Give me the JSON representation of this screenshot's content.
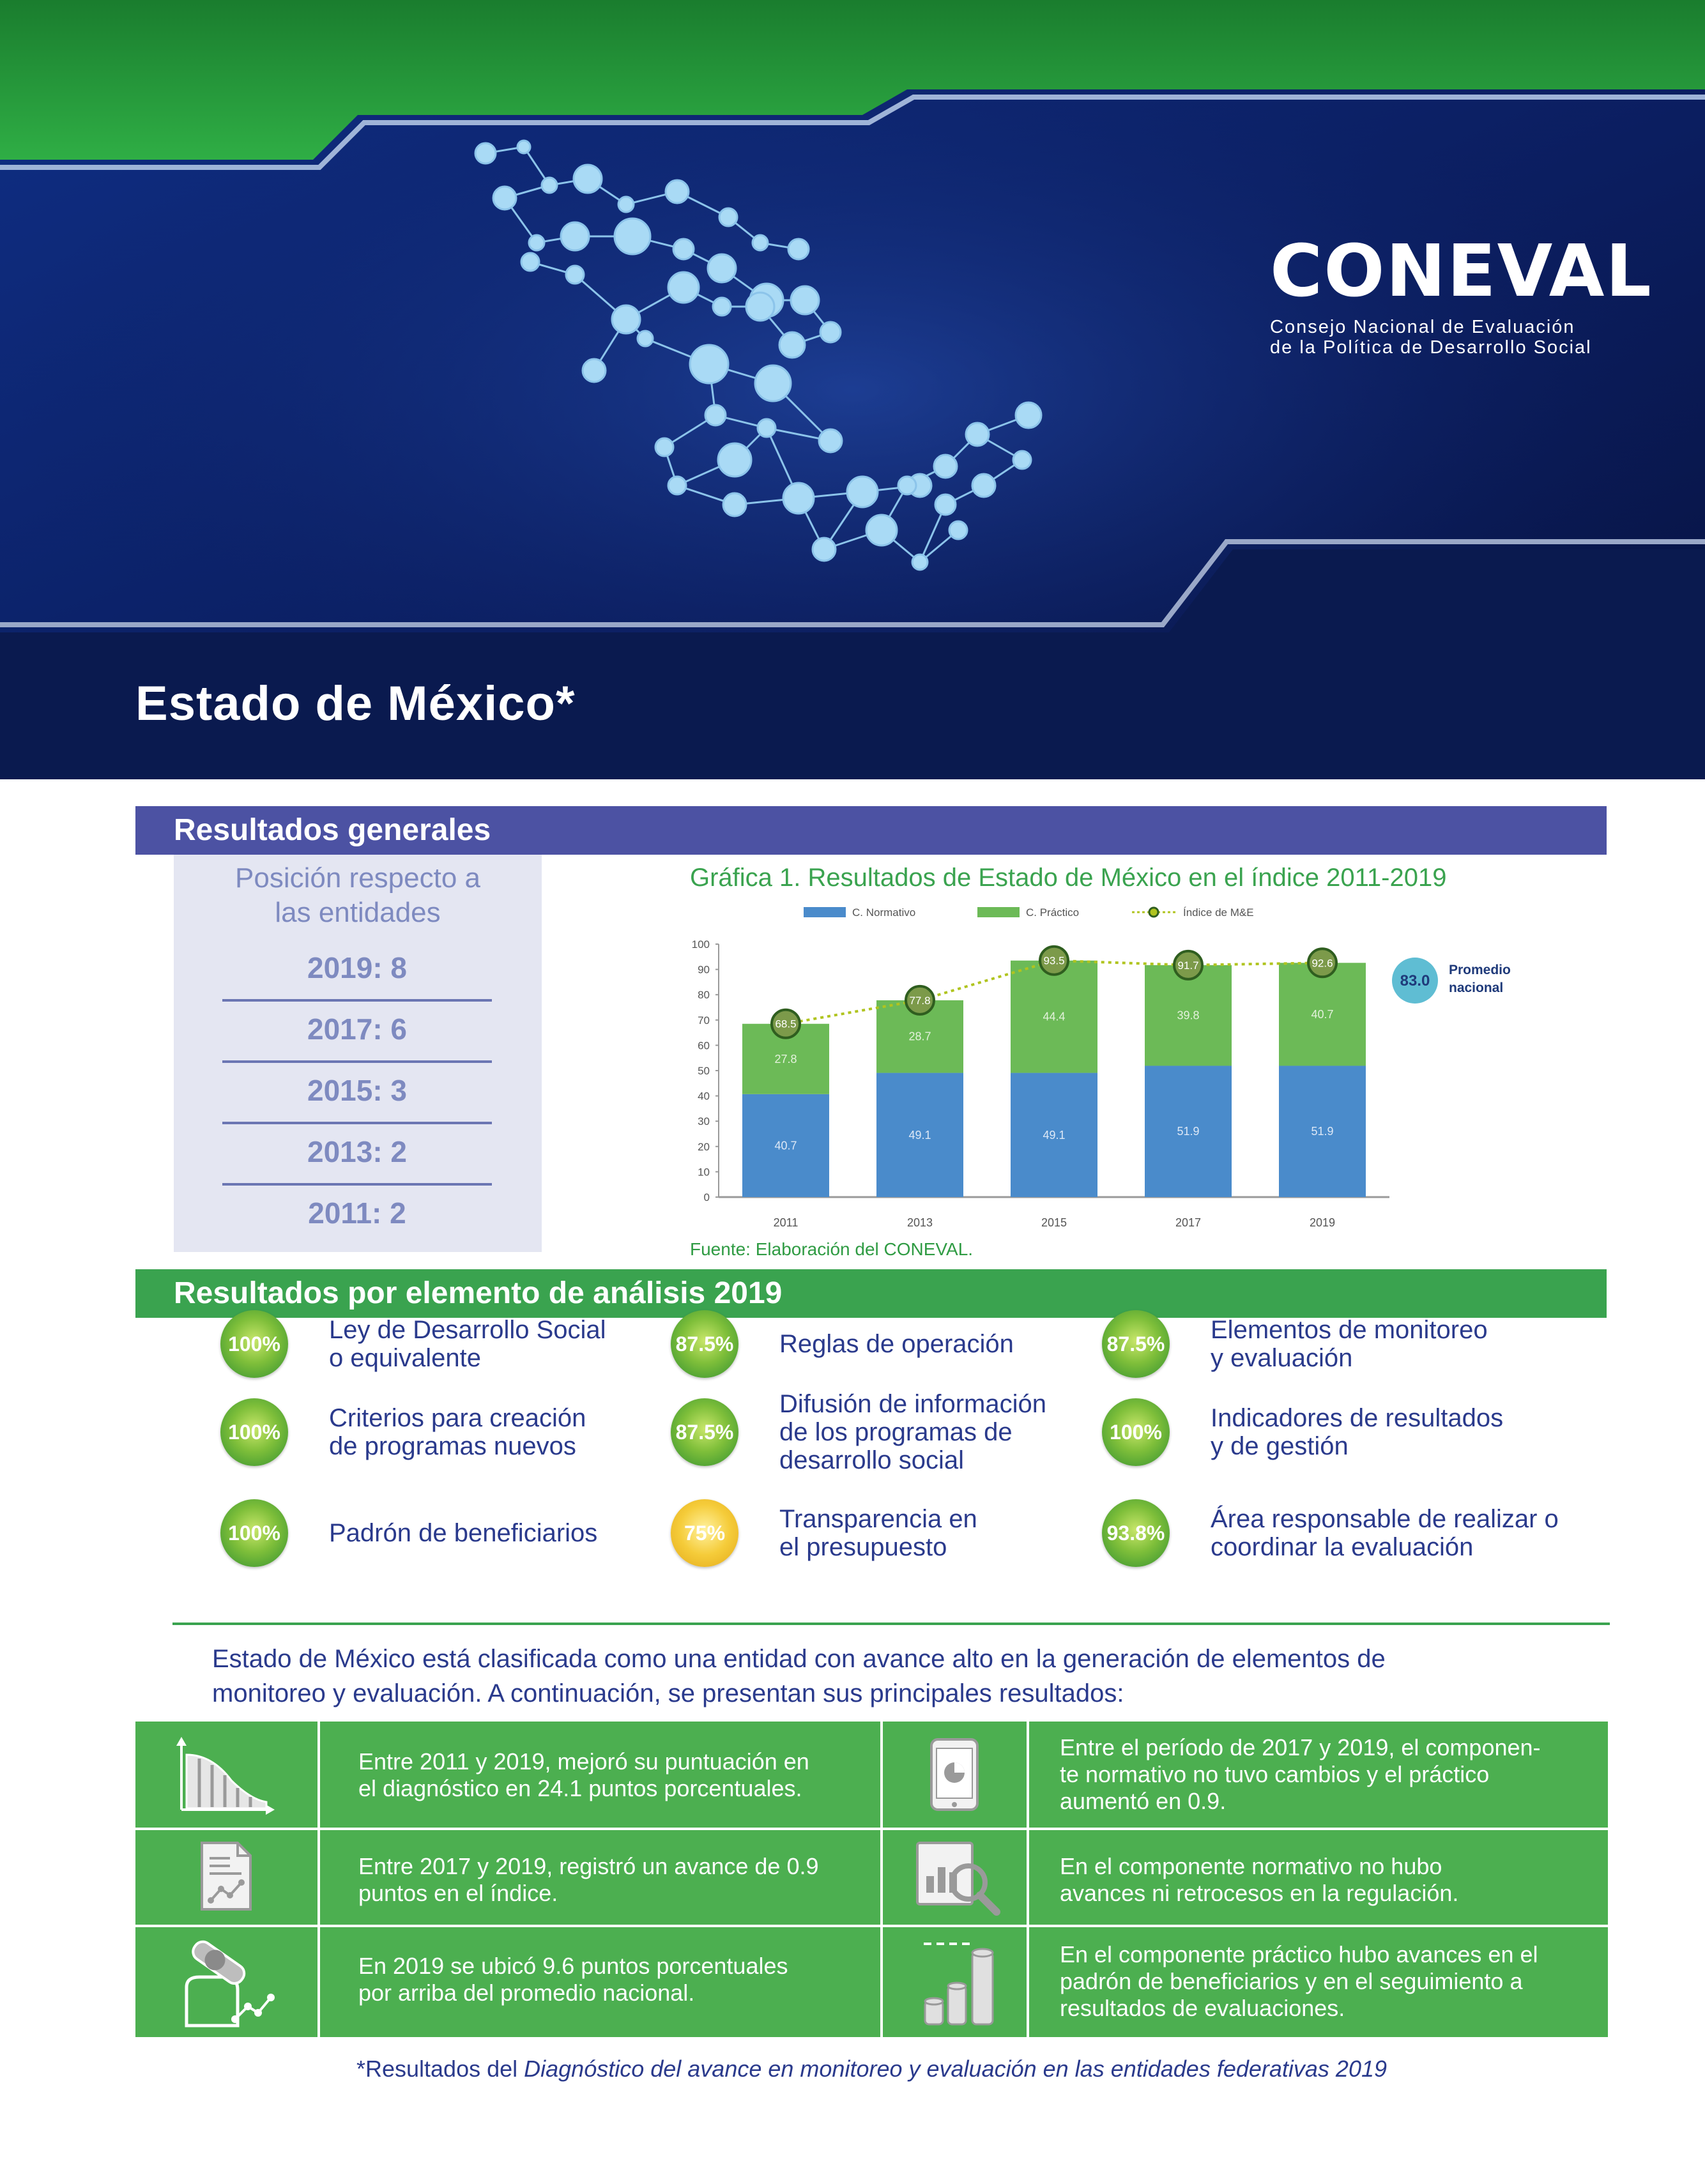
{
  "header": {
    "logo_word": "CONEVAL",
    "logo_sub_line1": "Consejo Nacional de Evaluación",
    "logo_sub_line2": "de la Política de Desarrollo Social",
    "page_title": "Estado de México*"
  },
  "colors": {
    "navy": "#0e1f5a",
    "green": "#3aa34f",
    "purple_bar": "#4c52a3",
    "normativo": "#4a8bcb",
    "practico": "#6cba57",
    "index_line": "#b0c41f"
  },
  "generales": {
    "section_title": "Resultados generales",
    "rank_title_line1": "Posición respecto a",
    "rank_title_line2": "las entidades",
    "ranks": [
      "2019:  8",
      "2017:  6",
      "2015:  3",
      "2013:  2",
      "2011:  2"
    ]
  },
  "chart": {
    "title": "Gráfica 1. Resultados de Estado de México en el índice 2011-2019",
    "source": "Fuente: Elaboración del CONEVAL.",
    "promedio_value": "83.0",
    "promedio_label_1": "Promedio",
    "promedio_label_2": "nacional"
  },
  "chart_data": {
    "type": "bar",
    "stacked": true,
    "categories": [
      "2011",
      "2013",
      "2015",
      "2017",
      "2019"
    ],
    "series": [
      {
        "name": "C. Normativo",
        "values": [
          40.7,
          49.1,
          49.1,
          51.9,
          51.9
        ]
      },
      {
        "name": "C. Práctico",
        "values": [
          27.8,
          28.7,
          44.4,
          39.8,
          40.7
        ]
      },
      {
        "name": "Índice de M&E",
        "type": "line",
        "values": [
          68.5,
          77.8,
          93.5,
          91.7,
          92.6
        ]
      }
    ],
    "ylim": [
      0,
      100
    ],
    "yticks": [
      "0",
      "10",
      "20",
      "30",
      "40",
      "50",
      "60",
      "70",
      "80",
      "90",
      "100"
    ],
    "legend": "top",
    "grid": false
  },
  "elementos": {
    "section_title": "Resultados por elemento de análisis 2019",
    "items": [
      {
        "pct": "100%",
        "label1": "Ley de Desarrollo Social",
        "label2": "o equivalente",
        "label3": ""
      },
      {
        "pct": "87.5%",
        "label1": "Reglas de operación",
        "label2": "",
        "label3": ""
      },
      {
        "pct": "87.5%",
        "label1": "Elementos de monitoreo",
        "label2": "y evaluación",
        "label3": ""
      },
      {
        "pct": "100%",
        "label1": "Criterios para creación",
        "label2": "de programas nuevos",
        "label3": ""
      },
      {
        "pct": "87.5%",
        "label1": "Difusión de información",
        "label2": "de los programas de",
        "label3": "desarrollo social"
      },
      {
        "pct": "100%",
        "label1": "Indicadores de resultados",
        "label2": "y de gestión",
        "label3": ""
      },
      {
        "pct": "100%",
        "label1": "Padrón de beneficiarios",
        "label2": "",
        "label3": ""
      },
      {
        "pct": "75%",
        "label1": "Transparencia en",
        "label2": "el presupuesto",
        "label3": ""
      },
      {
        "pct": "93.8%",
        "label1": "Área responsable de realizar o",
        "label2": "coordinar la evaluación",
        "label3": ""
      }
    ]
  },
  "summary": {
    "line1": "Estado de México está clasificada como una entidad con avance alto en la generación de elementos de",
    "line2": "monitoreo y evaluación. A continuación, se presentan sus principales resultados:"
  },
  "results": [
    {
      "l1": "Entre 2011 y 2019, mejoró su puntuación en",
      "l2": "el diagnóstico en 24.1 puntos porcentuales.",
      "l3": ""
    },
    {
      "l1": "Entre el período de 2017 y 2019, el componen-",
      "l2": "te normativo no tuvo cambios  y el práctico",
      "l3": "aumentó en 0.9."
    },
    {
      "l1": "Entre 2017 y 2019, registró un avance de 0.9",
      "l2": "puntos en el índice.",
      "l3": ""
    },
    {
      "l1": "En el componente normativo no hubo",
      "l2": "avances ni retrocesos en la regulación.",
      "l3": ""
    },
    {
      "l1": "En 2019 se ubicó 9.6 puntos porcentuales",
      "l2": "por arriba del promedio nacional.",
      "l3": ""
    },
    {
      "l1": "En el componente práctico hubo avances en el",
      "l2": "padrón de beneficiarios y en el seguimiento a",
      "l3": "resultados de evaluaciones."
    }
  ],
  "footnote": {
    "prefix": "*Resultados del ",
    "italic": "Diagnóstico del avance en monitoreo y evaluación en las entidades federativas 2019"
  }
}
